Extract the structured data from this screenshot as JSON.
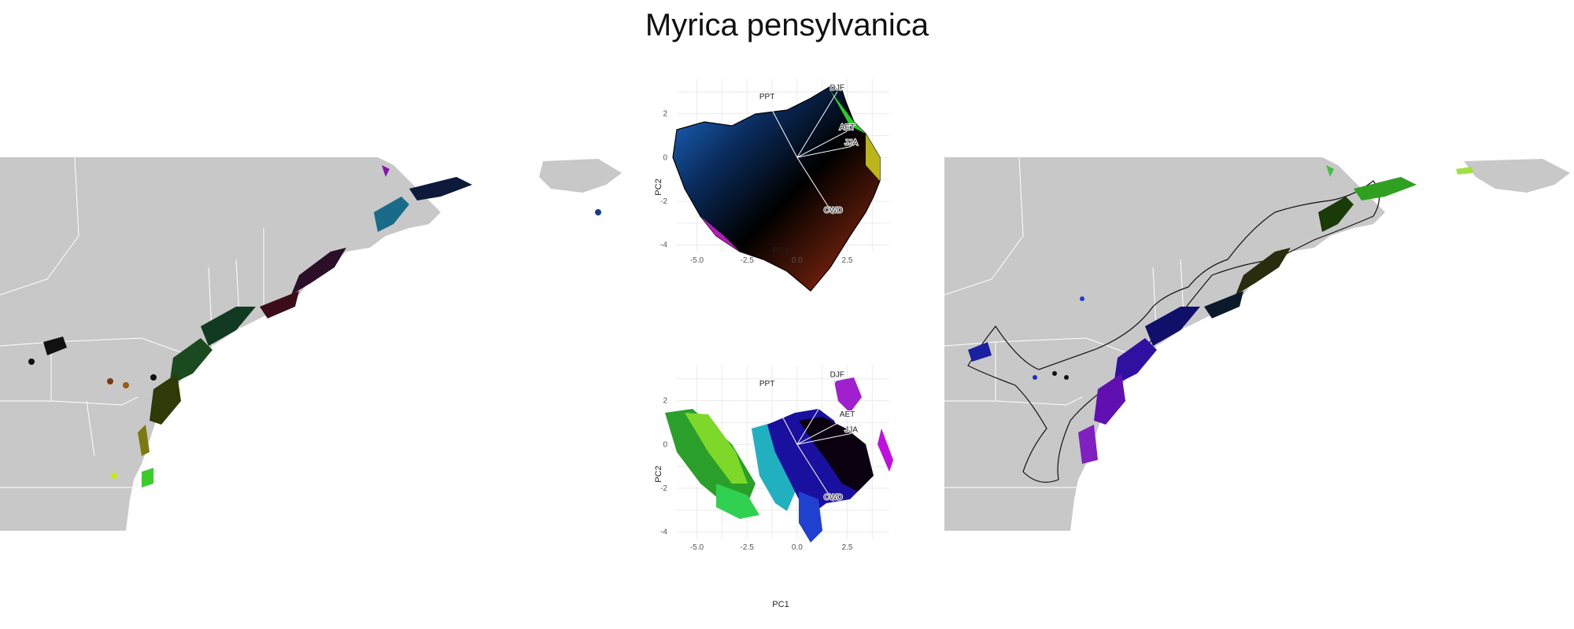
{
  "title": "Myrica pensylvanica",
  "colors": {
    "land": "#c8c8c8",
    "border": "#ffffff",
    "background": "#ffffff",
    "grid": "#ebebeb"
  },
  "chart_data": [
    {
      "type": "map",
      "panel": "left",
      "description_of_content": "observed range map, colored by climate PCA position",
      "grid": false
    },
    {
      "type": "scatter",
      "panel": "top-center",
      "xlabel": "PC1",
      "ylabel": "PC2",
      "xticks": [
        "-5.0",
        "-2.5",
        "0.0",
        "2.5"
      ],
      "yticks": [
        "2",
        "0",
        "-2",
        "-4"
      ],
      "xlim": [
        -6,
        4.6
      ],
      "ylim": [
        -4.3,
        3.6
      ],
      "grid": true,
      "vectors": [
        {
          "label": "PPT",
          "x": -1.5,
          "y": 2.6
        },
        {
          "label": "DJF",
          "x": 2.0,
          "y": 3.0
        },
        {
          "label": "AET",
          "x": 2.5,
          "y": 1.2
        },
        {
          "label": "JJA",
          "x": 2.7,
          "y": 0.5
        },
        {
          "label": "CWD",
          "x": 1.8,
          "y": -2.6
        }
      ]
    },
    {
      "type": "scatter",
      "panel": "bottom-center",
      "xlabel": "PC1",
      "ylabel": "PC2",
      "xticks": [
        "-5.0",
        "-2.5",
        "0.0",
        "2.5"
      ],
      "yticks": [
        "2",
        "0",
        "-2",
        "-4"
      ],
      "xlim": [
        -6,
        4.6
      ],
      "ylim": [
        -4.3,
        3.6
      ],
      "grid": true,
      "vectors": [
        {
          "label": "PPT",
          "x": -1.5,
          "y": 2.6
        },
        {
          "label": "DJF",
          "x": 2.0,
          "y": 3.0
        },
        {
          "label": "AET",
          "x": 2.5,
          "y": 1.2
        },
        {
          "label": "JJA",
          "x": 2.7,
          "y": 0.5
        },
        {
          "label": "CWD",
          "x": 1.8,
          "y": -2.6
        }
      ]
    },
    {
      "type": "map",
      "panel": "right",
      "description_of_content": "predicted range map with buffered outline, colored by climate PCA position",
      "grid": false
    }
  ]
}
